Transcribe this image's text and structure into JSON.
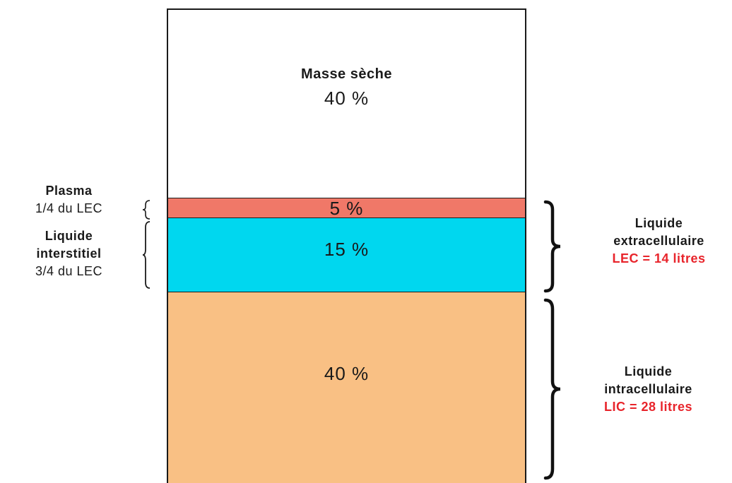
{
  "compartments": {
    "dry_mass": {
      "title": "Masse sèche",
      "percent": "40 %",
      "color": "#ffffff"
    },
    "plasma": {
      "percent": "5 %",
      "color": "#f07868"
    },
    "interstitial": {
      "percent": "15 %",
      "color": "#00d7ef"
    },
    "intracellular": {
      "percent": "40 %",
      "color": "#f9c084"
    }
  },
  "left_labels": {
    "plasma": {
      "line1": "Plasma",
      "line2": "1/4 du LEC"
    },
    "interstitial": {
      "line1": "Liquide",
      "line2": "interstitiel",
      "line3": "3/4 du LEC"
    }
  },
  "right_labels": {
    "extracellular": {
      "line1": "Liquide",
      "line2": "extracellulaire",
      "volume": "LEC = 14 litres",
      "volume_color": "#e8242b"
    },
    "intracellular": {
      "line1": "Liquide",
      "line2": "intracellulaire",
      "volume": "LIC = 28 litres",
      "volume_color": "#e8242b"
    }
  }
}
